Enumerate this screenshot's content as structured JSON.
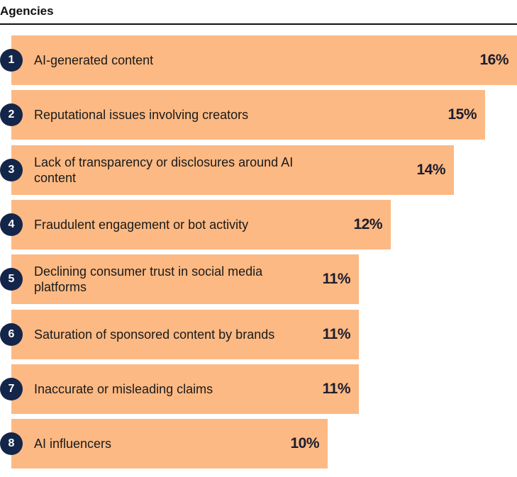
{
  "chart_data": {
    "type": "bar",
    "orientation": "horizontal",
    "title": "Agencies",
    "categories": [
      "AI-generated content",
      "Reputational issues involving creators",
      "Lack of transparency or disclosures around AI content",
      "Fraudulent engagement or bot activity",
      "Declining consumer trust in social media platforms",
      "Saturation of sponsored content by brands",
      "Inaccurate or misleading claims",
      "AI influencers"
    ],
    "ranks": [
      "1",
      "2",
      "3",
      "4",
      "5",
      "6",
      "7",
      "8"
    ],
    "values": [
      16,
      15,
      14,
      12,
      11,
      11,
      11,
      10
    ],
    "value_labels": [
      "16%",
      "15%",
      "14%",
      "12%",
      "11%",
      "11%",
      "11%",
      "10%"
    ],
    "xlim": [
      0,
      16
    ],
    "grid": false,
    "legend": "none"
  },
  "colors": {
    "bar": "#fdb983",
    "rank_circle": "#14254a",
    "rule": "#111111"
  }
}
